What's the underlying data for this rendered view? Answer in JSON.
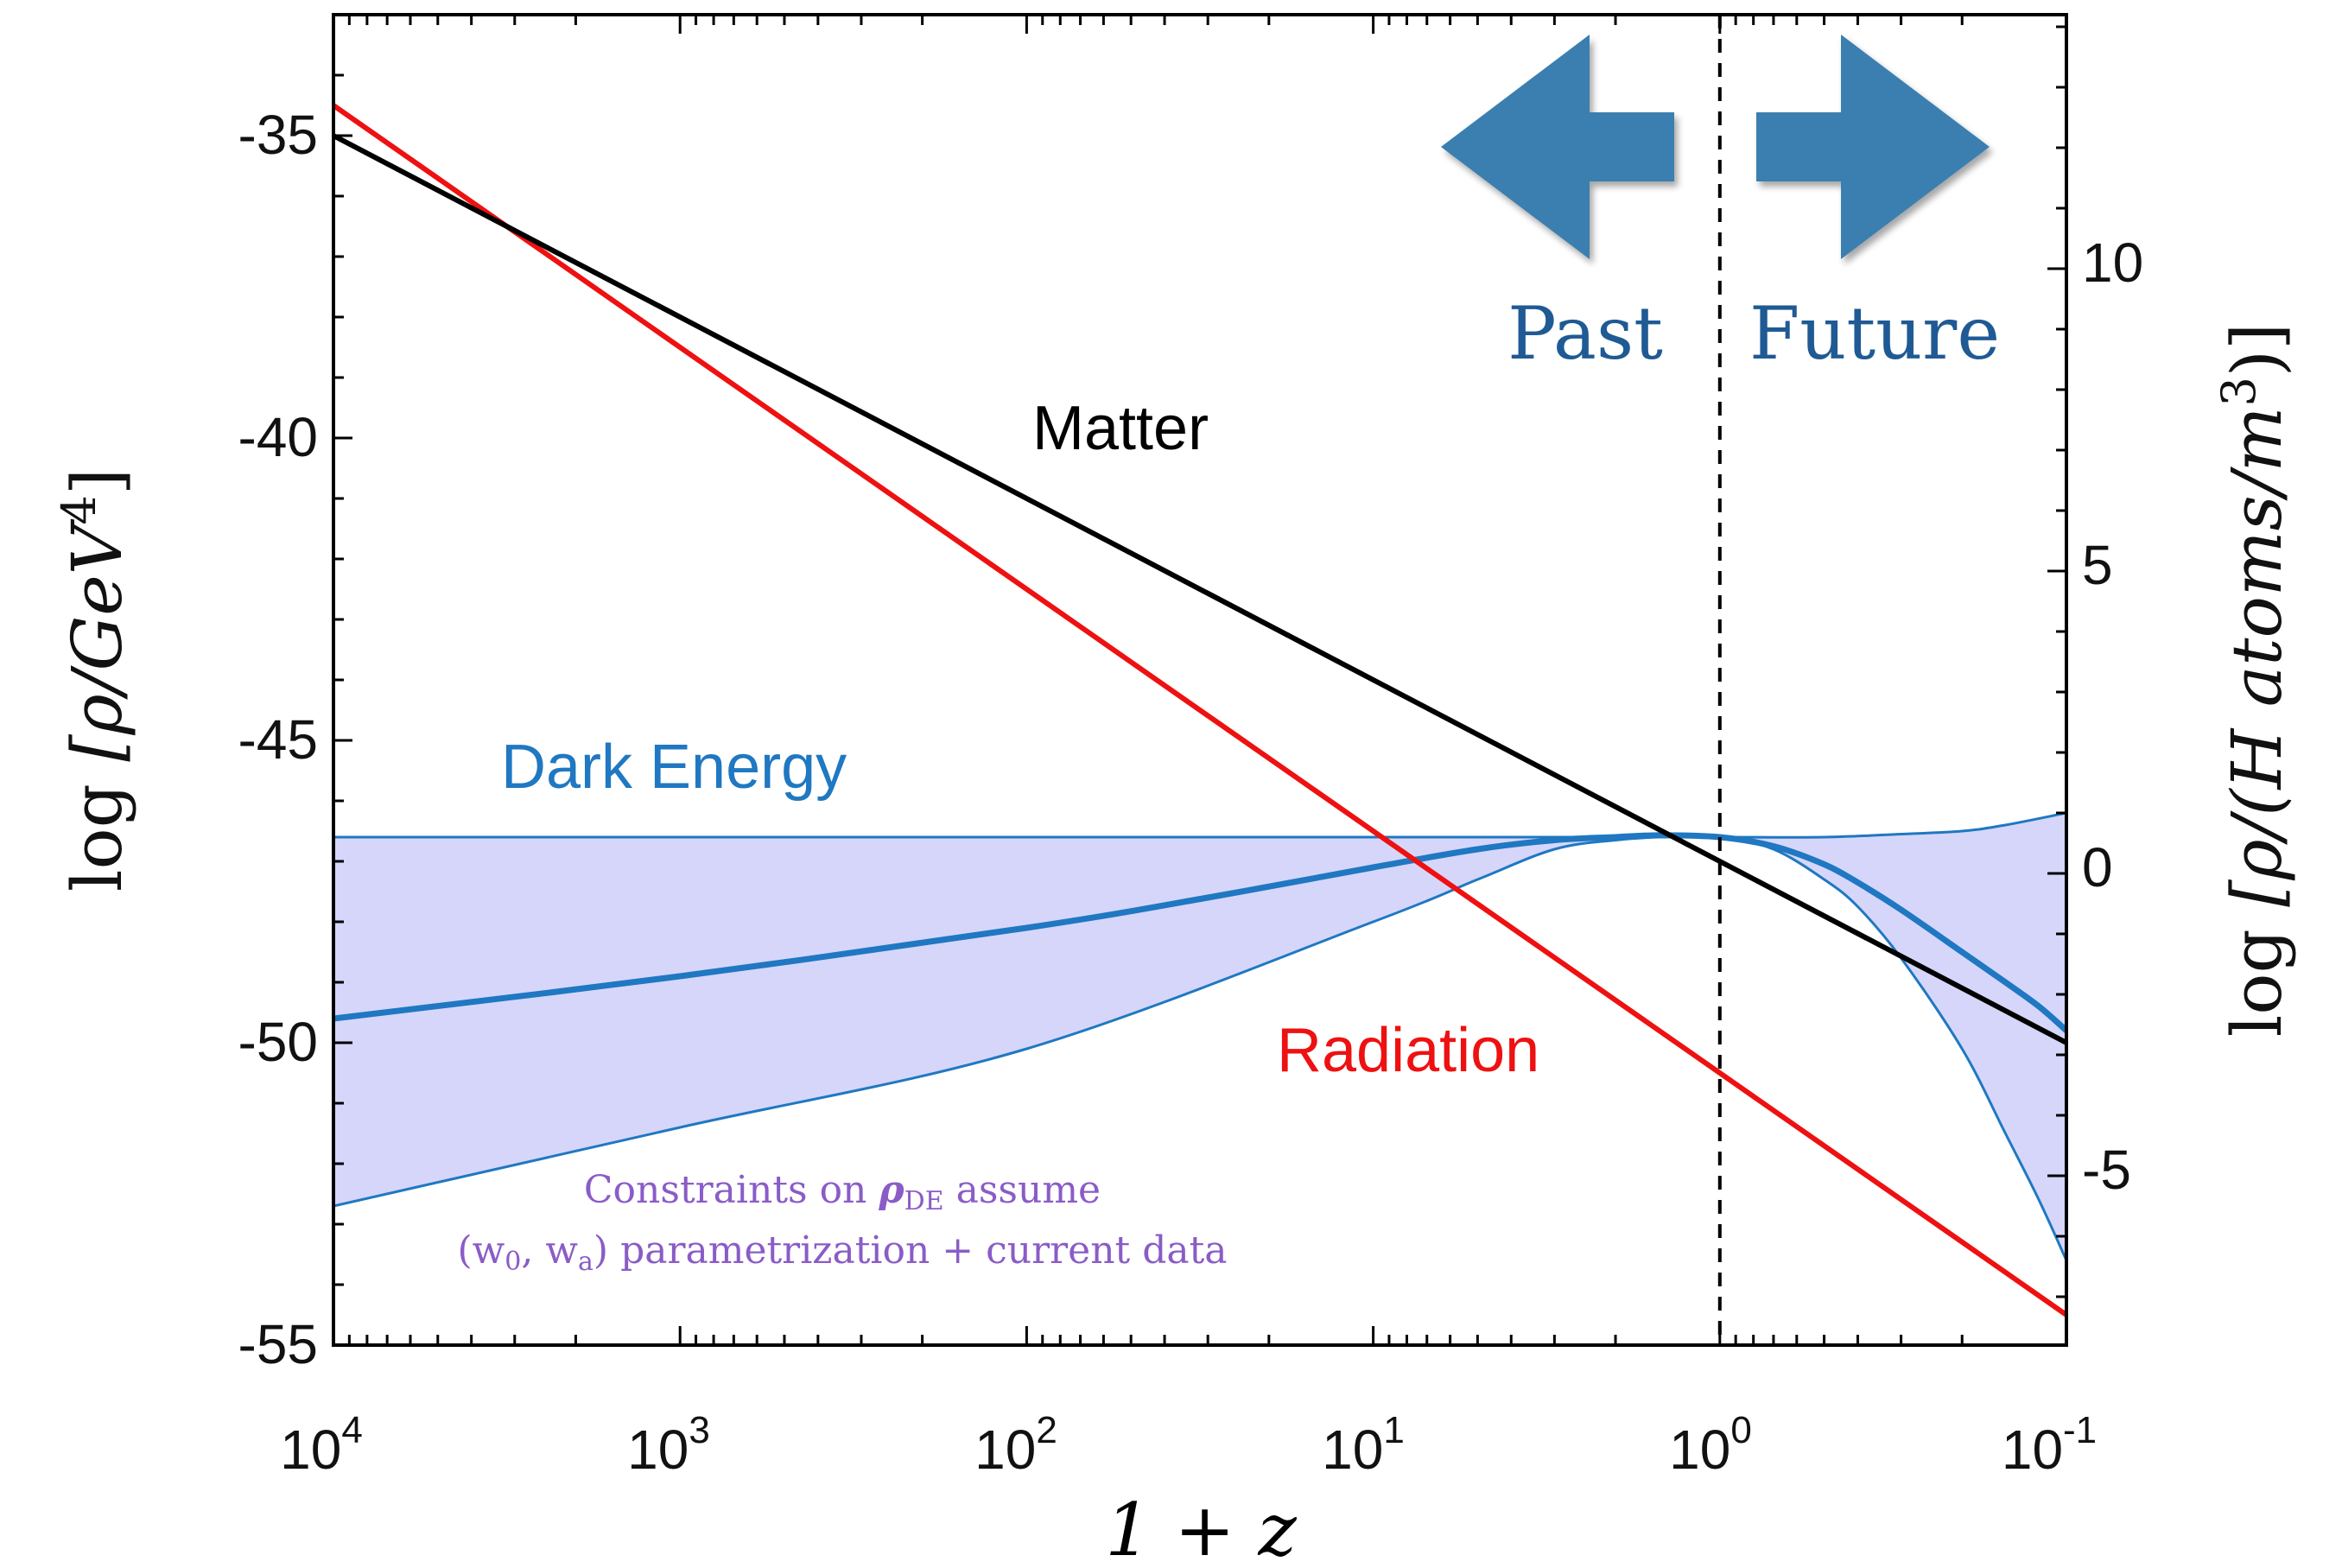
{
  "chart_data": {
    "type": "line",
    "x_axis": {
      "label": "1 + z",
      "scale": "log",
      "reversed": true,
      "lim": [
        10000,
        0.1
      ],
      "major_ticks": [
        10000,
        1000,
        100,
        10,
        1,
        0.1
      ],
      "tick_labels": [
        {
          "base": "10",
          "exp": "4"
        },
        {
          "base": "10",
          "exp": "3"
        },
        {
          "base": "10",
          "exp": "2"
        },
        {
          "base": "10",
          "exp": "1"
        },
        {
          "base": "10",
          "exp": "0"
        },
        {
          "base": "10",
          "exp": "-1"
        }
      ]
    },
    "y_axis_left": {
      "label_prefix": "log",
      "label_body": "[ρ/GeV",
      "label_sup": "4",
      "label_suffix": "]",
      "lim": [
        -55,
        -33
      ],
      "major_ticks": [
        -35,
        -40,
        -45,
        -50,
        -55
      ],
      "tick_labels": [
        "-35",
        "-40",
        "-45",
        "-50",
        "-55"
      ]
    },
    "y_axis_right": {
      "label_prefix": "log",
      "label_body": "[ρ/(H atoms/m",
      "label_sup": "3",
      "label_suffix": ")]",
      "offset_from_left": 47.2,
      "major_ticks": [
        10,
        5,
        0,
        -5
      ],
      "tick_labels": [
        "10",
        "5",
        "0",
        "-5"
      ]
    },
    "series": [
      {
        "name": "Matter",
        "color": "#000000",
        "x": [
          10000,
          0.1
        ],
        "y": [
          -35.0,
          -50.0
        ]
      },
      {
        "name": "Radiation",
        "color": "#ee1111",
        "x": [
          10000,
          0.1
        ],
        "y": [
          -34.5,
          -54.5
        ]
      },
      {
        "name": "Dark Energy",
        "color": "#1f78c1",
        "band_color": "#d6d6fb",
        "upper": {
          "x": [
            10000,
            1000,
            100,
            10,
            5,
            2,
            1,
            0.5,
            0.3,
            0.2,
            0.15,
            0.1
          ],
          "y": [
            -46.6,
            -46.6,
            -46.6,
            -46.6,
            -46.6,
            -46.6,
            -46.6,
            -46.6,
            -46.55,
            -46.5,
            -46.4,
            -46.2
          ]
        },
        "central": {
          "x": [
            10000,
            1000,
            100,
            30,
            10,
            5,
            3,
            2,
            1.5,
            1,
            0.7,
            0.5,
            0.4,
            0.3,
            0.2,
            0.15,
            0.12,
            0.1
          ],
          "y": [
            -49.6,
            -48.9,
            -48.1,
            -47.6,
            -47.1,
            -46.8,
            -46.65,
            -46.6,
            -46.57,
            -46.6,
            -46.75,
            -47.05,
            -47.35,
            -47.8,
            -48.5,
            -49.0,
            -49.4,
            -49.8
          ]
        },
        "lower": {
          "x": [
            10000,
            1000,
            100,
            10,
            5,
            3,
            2,
            1.5,
            1,
            0.7,
            0.5,
            0.4,
            0.3,
            0.2,
            0.15,
            0.12,
            0.1
          ],
          "y": [
            -52.7,
            -51.4,
            -50.1,
            -48.0,
            -47.3,
            -46.8,
            -46.65,
            -46.6,
            -46.6,
            -46.8,
            -47.3,
            -47.75,
            -48.6,
            -50.1,
            -51.5,
            -52.6,
            -53.6
          ]
        }
      }
    ],
    "reference_line": {
      "x": 1,
      "style": "dashed",
      "color": "#000000"
    },
    "annotations": {
      "matter": "Matter",
      "radiation": "Radiation",
      "dark_energy": "Dark Energy",
      "past": "Past",
      "future": "Future",
      "constraints_line1_a": "Constraints on ",
      "constraints_rho": "ρ",
      "constraints_sub": "DE",
      "constraints_line1_b": " assume",
      "constraints_line2_a": "(w",
      "constraints_w0_sub": "0",
      "constraints_line2_b": ", w",
      "constraints_wa_sub": "a",
      "constraints_line2_c": ") parametrization + current data"
    },
    "colors": {
      "arrow": "#3a7fb0",
      "past_future_text": "#1f5a94",
      "constraints_text": "#8a5cc7"
    }
  }
}
